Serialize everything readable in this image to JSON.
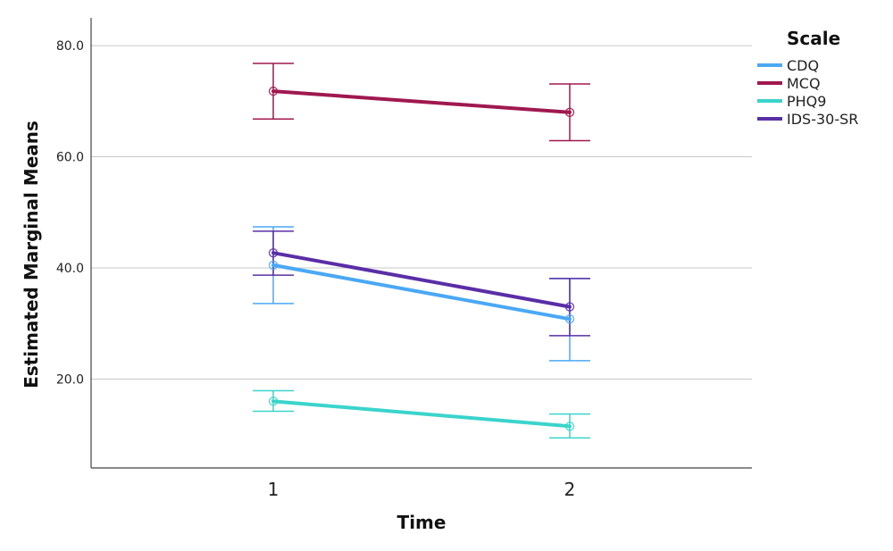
{
  "chart_data": {
    "type": "line",
    "title": "",
    "xlabel": "Time",
    "ylabel": "Estimated Marginal Means",
    "x": [
      "1",
      "2"
    ],
    "ylim": [
      4.0,
      85.0
    ],
    "yticks": [
      "20.0",
      "40.0",
      "60.0",
      "80.0"
    ],
    "grid": true,
    "legend": {
      "title": "Scale",
      "position": "top-right"
    },
    "series": [
      {
        "name": "CDQ",
        "color": "#4aa8f5",
        "values": [
          40.5,
          30.8
        ],
        "error_low": [
          33.6,
          23.3
        ],
        "error_high": [
          47.4,
          38.1
        ]
      },
      {
        "name": "MCQ",
        "color": "#a01850",
        "values": [
          71.8,
          68.0
        ],
        "error_low": [
          66.8,
          62.9
        ],
        "error_high": [
          76.8,
          73.1
        ]
      },
      {
        "name": "PHQ9",
        "color": "#3ad4cc",
        "values": [
          16.0,
          11.5
        ],
        "error_low": [
          14.2,
          9.4
        ],
        "error_high": [
          17.9,
          13.7
        ]
      },
      {
        "name": "IDS-30-SR",
        "color": "#5a2ea6",
        "values": [
          42.7,
          33.0
        ],
        "error_low": [
          38.7,
          27.8
        ],
        "error_high": [
          46.6,
          38.1
        ]
      }
    ]
  }
}
